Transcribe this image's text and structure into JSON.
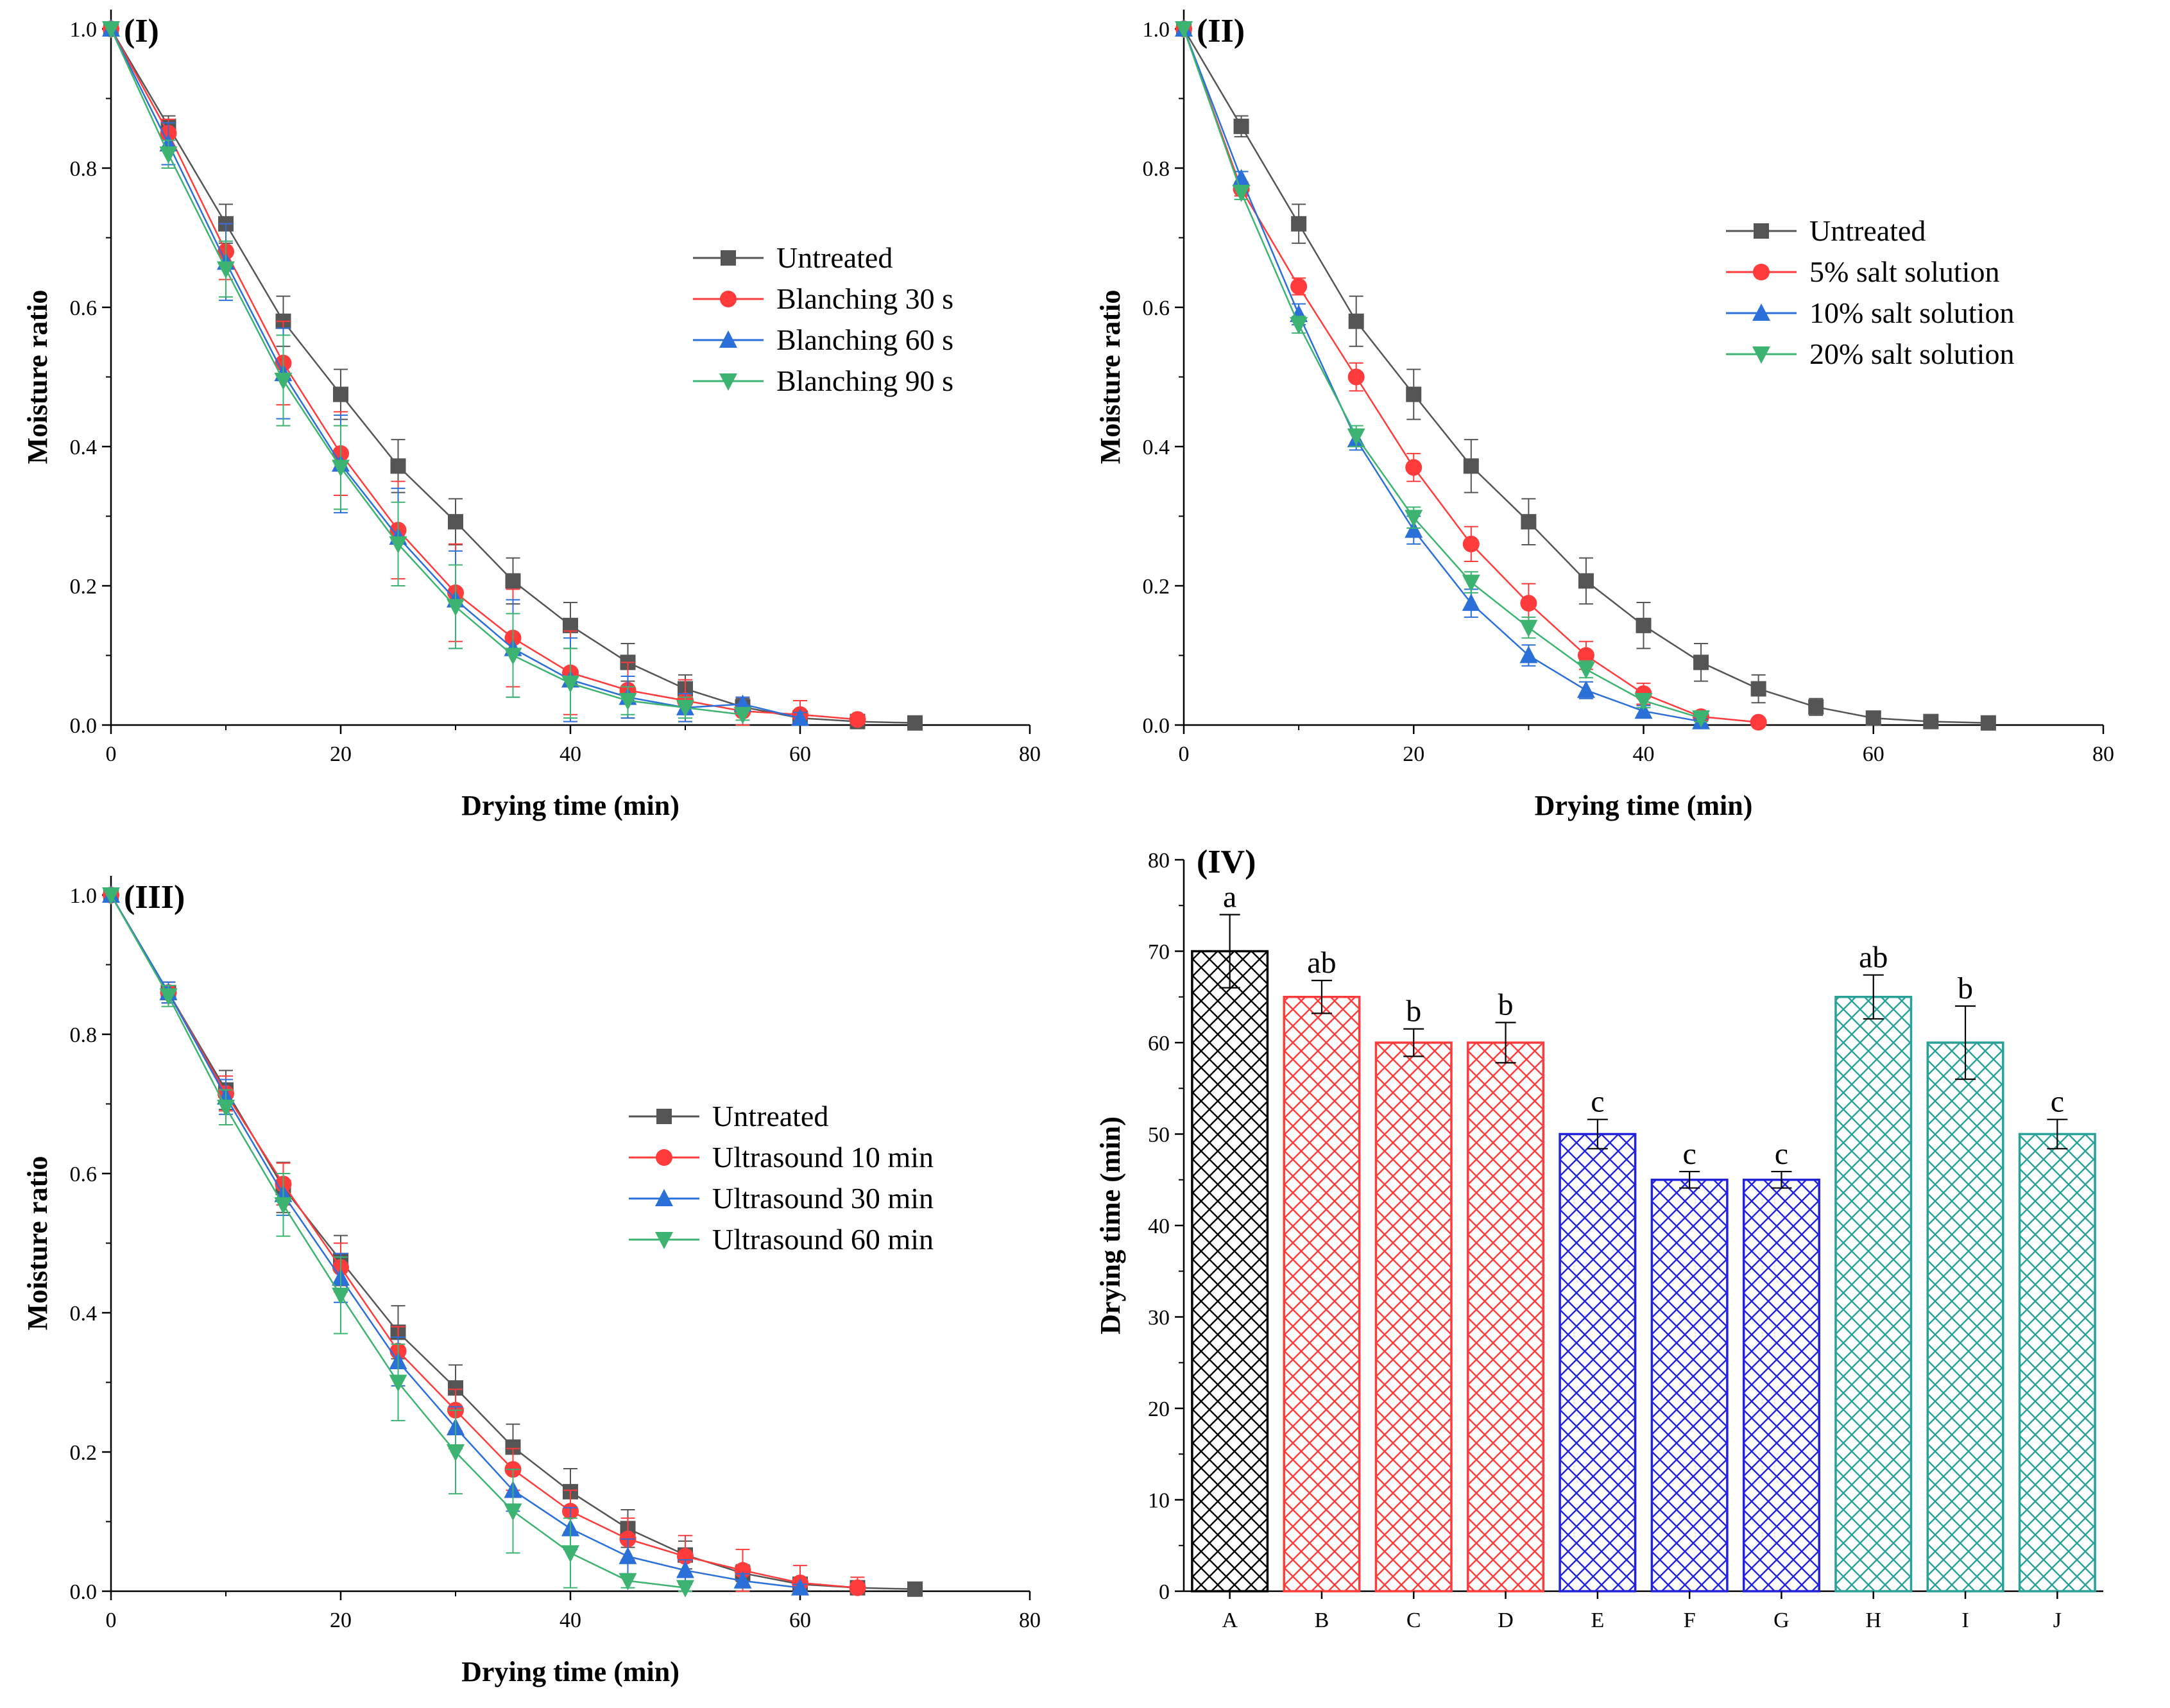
{
  "figure_name": "moisture-drying-figure",
  "chart_data": [
    {
      "id": "I",
      "type": "line",
      "panel_label": "(I)",
      "xlabel": "Drying time (min)",
      "ylabel": "Moisture ratio",
      "xlim": [
        0,
        80
      ],
      "ylim": [
        0,
        1.0
      ],
      "xticks": [
        0,
        20,
        40,
        60,
        80
      ],
      "yticks": [
        0.0,
        0.2,
        0.4,
        0.6,
        0.8,
        1.0
      ],
      "legend_position": "right-middle",
      "series": [
        {
          "name": "Untreated",
          "color": "#555555",
          "marker": "square",
          "x": [
            0,
            5,
            10,
            15,
            20,
            25,
            30,
            35,
            40,
            45,
            50,
            55,
            60,
            65,
            70
          ],
          "y": [
            1.0,
            0.86,
            0.72,
            0.58,
            0.475,
            0.372,
            0.292,
            0.207,
            0.143,
            0.09,
            0.052,
            0.026,
            0.01,
            0.005,
            0.003
          ],
          "err": [
            0,
            0.015,
            0.028,
            0.036,
            0.036,
            0.038,
            0.033,
            0.033,
            0.033,
            0.027,
            0.02,
            0.012,
            0.006,
            0.004,
            0.003
          ]
        },
        {
          "name": "Blanching 30 s",
          "color": "#ff3b3b",
          "marker": "circle",
          "x": [
            0,
            5,
            10,
            15,
            20,
            25,
            30,
            35,
            40,
            45,
            50,
            55,
            60,
            65
          ],
          "y": [
            1.0,
            0.85,
            0.68,
            0.52,
            0.39,
            0.28,
            0.19,
            0.125,
            0.075,
            0.05,
            0.035,
            0.02,
            0.015,
            0.008
          ],
          "err": [
            0,
            0.02,
            0.04,
            0.06,
            0.06,
            0.07,
            0.07,
            0.07,
            0.06,
            0.04,
            0.03,
            0.02,
            0.02,
            0.005
          ]
        },
        {
          "name": "Blanching 60 s",
          "color": "#2b6fd9",
          "marker": "triangle-up",
          "x": [
            0,
            5,
            10,
            15,
            20,
            25,
            30,
            35,
            40,
            45,
            50,
            55,
            60
          ],
          "y": [
            1.0,
            0.835,
            0.665,
            0.505,
            0.375,
            0.27,
            0.18,
            0.11,
            0.065,
            0.04,
            0.025,
            0.03,
            0.01
          ],
          "err": [
            0,
            0.03,
            0.055,
            0.065,
            0.07,
            0.07,
            0.07,
            0.07,
            0.06,
            0.03,
            0.02,
            0.01,
            0.008
          ]
        },
        {
          "name": "Blanching 90 s",
          "color": "#3cb371",
          "marker": "triangle-down",
          "x": [
            0,
            5,
            10,
            15,
            20,
            25,
            30,
            35,
            40,
            45,
            50,
            55
          ],
          "y": [
            1.0,
            0.82,
            0.655,
            0.495,
            0.37,
            0.26,
            0.17,
            0.1,
            0.06,
            0.035,
            0.025,
            0.015
          ],
          "err": [
            0,
            0.02,
            0.04,
            0.065,
            0.06,
            0.06,
            0.06,
            0.06,
            0.05,
            0.02,
            0.015,
            0.008
          ]
        }
      ]
    },
    {
      "id": "II",
      "type": "line",
      "panel_label": "(II)",
      "xlabel": "Drying time (min)",
      "ylabel": "Moisture ratio",
      "xlim": [
        0,
        80
      ],
      "ylim": [
        0,
        1.0
      ],
      "xticks": [
        0,
        20,
        40,
        60,
        80
      ],
      "yticks": [
        0.0,
        0.2,
        0.4,
        0.6,
        0.8,
        1.0
      ],
      "legend_position": "top-right",
      "series": [
        {
          "name": "Untreated",
          "color": "#555555",
          "marker": "square",
          "x": [
            0,
            5,
            10,
            15,
            20,
            25,
            30,
            35,
            40,
            45,
            50,
            55,
            60,
            65,
            70
          ],
          "y": [
            1.0,
            0.86,
            0.72,
            0.58,
            0.475,
            0.372,
            0.292,
            0.207,
            0.143,
            0.09,
            0.052,
            0.026,
            0.01,
            0.005,
            0.003
          ],
          "err": [
            0,
            0.015,
            0.028,
            0.036,
            0.036,
            0.038,
            0.033,
            0.033,
            0.033,
            0.027,
            0.02,
            0.012,
            0.006,
            0.004,
            0.003
          ]
        },
        {
          "name": "5% salt solution",
          "color": "#ff3b3b",
          "marker": "circle",
          "x": [
            0,
            5,
            10,
            15,
            20,
            25,
            30,
            35,
            40,
            45,
            50
          ],
          "y": [
            1.0,
            0.77,
            0.63,
            0.5,
            0.37,
            0.26,
            0.175,
            0.1,
            0.045,
            0.012,
            0.004
          ],
          "err": [
            0,
            0.01,
            0.012,
            0.02,
            0.02,
            0.025,
            0.028,
            0.02,
            0.015,
            0.006,
            0.003
          ]
        },
        {
          "name": "10% salt solution",
          "color": "#2b6fd9",
          "marker": "triangle-up",
          "x": [
            0,
            5,
            10,
            15,
            20,
            25,
            30,
            35,
            40,
            45
          ],
          "y": [
            1.0,
            0.785,
            0.59,
            0.41,
            0.28,
            0.175,
            0.1,
            0.05,
            0.02,
            0.005
          ],
          "err": [
            0,
            0.01,
            0.015,
            0.015,
            0.02,
            0.02,
            0.015,
            0.012,
            0.008,
            0.004
          ]
        },
        {
          "name": "20% salt solution",
          "color": "#3cb371",
          "marker": "triangle-down",
          "x": [
            0,
            5,
            10,
            15,
            20,
            25,
            30,
            35,
            40,
            45
          ],
          "y": [
            1.0,
            0.765,
            0.575,
            0.415,
            0.298,
            0.205,
            0.14,
            0.08,
            0.035,
            0.01
          ],
          "err": [
            0,
            0.01,
            0.012,
            0.015,
            0.015,
            0.015,
            0.015,
            0.012,
            0.01,
            0.005
          ]
        }
      ]
    },
    {
      "id": "III",
      "type": "line",
      "panel_label": "(III)",
      "xlabel": "Drying time (min)",
      "ylabel": "Moisture ratio",
      "xlim": [
        0,
        80
      ],
      "ylim": [
        0,
        1.0
      ],
      "xticks": [
        0,
        20,
        40,
        60,
        80
      ],
      "yticks": [
        0.0,
        0.2,
        0.4,
        0.6,
        0.8,
        1.0
      ],
      "legend_position": "right-middle",
      "series": [
        {
          "name": "Untreated",
          "color": "#555555",
          "marker": "square",
          "x": [
            0,
            5,
            10,
            15,
            20,
            25,
            30,
            35,
            40,
            45,
            50,
            55,
            60,
            65,
            70
          ],
          "y": [
            1.0,
            0.86,
            0.72,
            0.58,
            0.475,
            0.372,
            0.292,
            0.207,
            0.143,
            0.09,
            0.052,
            0.026,
            0.01,
            0.005,
            0.003
          ],
          "err": [
            0,
            0.015,
            0.028,
            0.036,
            0.036,
            0.038,
            0.033,
            0.033,
            0.033,
            0.027,
            0.02,
            0.012,
            0.006,
            0.004,
            0.003
          ]
        },
        {
          "name": "Ultrasound 10 min",
          "color": "#ff3b3b",
          "marker": "circle",
          "x": [
            0,
            5,
            10,
            15,
            20,
            25,
            30,
            35,
            40,
            45,
            50,
            55,
            60,
            65
          ],
          "y": [
            1.0,
            0.86,
            0.715,
            0.585,
            0.465,
            0.345,
            0.26,
            0.175,
            0.115,
            0.075,
            0.05,
            0.03,
            0.012,
            0.005
          ],
          "err": [
            0,
            0.015,
            0.025,
            0.03,
            0.035,
            0.035,
            0.03,
            0.03,
            0.03,
            0.03,
            0.03,
            0.03,
            0.025,
            0.015
          ]
        },
        {
          "name": "Ultrasound 30 min",
          "color": "#2b6fd9",
          "marker": "triangle-up",
          "x": [
            0,
            5,
            10,
            15,
            20,
            25,
            30,
            35,
            40,
            45,
            50,
            55,
            60
          ],
          "y": [
            1.0,
            0.86,
            0.71,
            0.57,
            0.45,
            0.33,
            0.235,
            0.145,
            0.09,
            0.05,
            0.03,
            0.015,
            0.005
          ],
          "err": [
            0,
            0.015,
            0.025,
            0.03,
            0.035,
            0.035,
            0.03,
            0.03,
            0.03,
            0.025,
            0.015,
            0.01,
            0.005
          ]
        },
        {
          "name": "Ultrasound 60 min",
          "color": "#3cb371",
          "marker": "triangle-down",
          "x": [
            0,
            5,
            10,
            15,
            20,
            25,
            30,
            35,
            40,
            45,
            50
          ],
          "y": [
            1.0,
            0.855,
            0.695,
            0.555,
            0.425,
            0.3,
            0.2,
            0.115,
            0.055,
            0.015,
            0.005
          ],
          "err": [
            0,
            0.015,
            0.025,
            0.045,
            0.055,
            0.055,
            0.06,
            0.06,
            0.05,
            0.01,
            0.005
          ]
        }
      ]
    },
    {
      "id": "IV",
      "type": "bar",
      "panel_label": "(IV)",
      "xlabel": "",
      "ylabel": "Drying time (min)",
      "ylim": [
        0,
        80
      ],
      "yticks": [
        0,
        10,
        20,
        30,
        40,
        50,
        60,
        70,
        80
      ],
      "categories": [
        "A",
        "B",
        "C",
        "D",
        "E",
        "F",
        "G",
        "H",
        "I",
        "J"
      ],
      "values": [
        70,
        65,
        60,
        60,
        50,
        45,
        45,
        65,
        60,
        50
      ],
      "errors": [
        4,
        1.8,
        1.5,
        2.2,
        1.6,
        0.9,
        0.9,
        2.4,
        4,
        1.6
      ],
      "letters": [
        "a",
        "ab",
        "b",
        "b",
        "c",
        "c",
        "c",
        "ab",
        "b",
        "c"
      ],
      "colors": [
        "#000000",
        "#ff3b3b",
        "#ff3b3b",
        "#ff3b3b",
        "#2222dd",
        "#2222dd",
        "#2222dd",
        "#2aa198",
        "#2aa198",
        "#2aa198"
      ]
    }
  ]
}
